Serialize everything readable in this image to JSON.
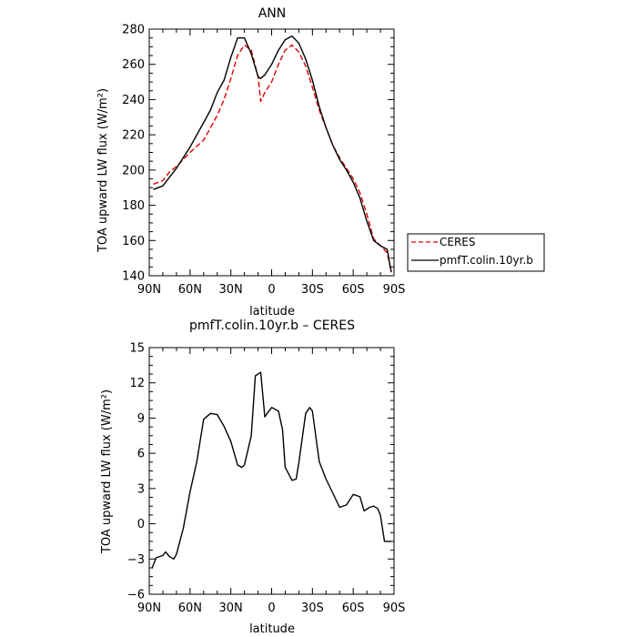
{
  "chart_data": [
    {
      "type": "line",
      "title": "ANN",
      "xlabel": "latitude",
      "ylabel": "TOA upward LW flux (W/m²)",
      "xlim": [
        90,
        -90
      ],
      "ylim": [
        140,
        280
      ],
      "xticks": [
        90,
        60,
        30,
        0,
        -30,
        -60,
        -90
      ],
      "xtick_labels": [
        "90N",
        "60N",
        "30N",
        "0",
        "30S",
        "60S",
        "90S"
      ],
      "yticks": [
        140,
        160,
        180,
        200,
        220,
        240,
        260,
        280
      ],
      "ytick_labels": [
        "140",
        "160",
        "180",
        "200",
        "220",
        "240",
        "260",
        "280"
      ],
      "legend": "outside-right",
      "series": [
        {
          "name": "CERES",
          "color": "#dd0000",
          "dash": "dashed",
          "x": [
            87,
            80,
            75,
            70,
            60,
            50,
            45,
            40,
            35,
            30,
            25,
            20,
            15,
            10,
            8,
            5,
            0,
            -5,
            -10,
            -15,
            -20,
            -25,
            -30,
            -35,
            -40,
            -45,
            -50,
            -55,
            -60,
            -65,
            -70,
            -75,
            -80,
            -85,
            -88
          ],
          "y": [
            192,
            194,
            199,
            202,
            210,
            217,
            224,
            231,
            240,
            252,
            265,
            271,
            268,
            253,
            239,
            244,
            250,
            260,
            268,
            271,
            267,
            259,
            247,
            234,
            224,
            214,
            207,
            201,
            195,
            187,
            175,
            161,
            157,
            153,
            142
          ]
        },
        {
          "name": "pmfT.colin.10yr.b",
          "color": "#000000",
          "dash": "solid",
          "x": [
            87,
            80,
            75,
            70,
            60,
            50,
            45,
            40,
            35,
            30,
            25,
            20,
            15,
            10,
            8,
            5,
            0,
            -5,
            -10,
            -15,
            -20,
            -25,
            -30,
            -35,
            -40,
            -45,
            -50,
            -55,
            -60,
            -65,
            -70,
            -75,
            -80,
            -85,
            -88
          ],
          "y": [
            189,
            191,
            196,
            201,
            213,
            227,
            234,
            244,
            251,
            264,
            275,
            275,
            266,
            253,
            252,
            254,
            260,
            268,
            274,
            276,
            272,
            263,
            251,
            236,
            224,
            214,
            206,
            200,
            193,
            184,
            171,
            160,
            157,
            155,
            142
          ]
        }
      ]
    },
    {
      "type": "line",
      "title": "pmfT.colin.10yr.b – CERES",
      "xlabel": "latitude",
      "ylabel": "TOA upward LW flux (W/m²)",
      "xlim": [
        90,
        -90
      ],
      "ylim": [
        -6,
        15
      ],
      "xticks": [
        90,
        60,
        30,
        0,
        -30,
        -60,
        -90
      ],
      "xtick_labels": [
        "90N",
        "60N",
        "30N",
        "0",
        "30S",
        "60S",
        "90S"
      ],
      "yticks": [
        -6,
        -3,
        0,
        3,
        6,
        9,
        12,
        15
      ],
      "ytick_labels": [
        "−6",
        "−3",
        "0",
        "3",
        "6",
        "9",
        "12",
        "15"
      ],
      "series": [
        {
          "color": "#000000",
          "dash": "solid",
          "x": [
            88,
            85,
            80,
            78,
            75,
            72,
            70,
            65,
            60,
            55,
            50,
            45,
            40,
            35,
            30,
            25,
            22,
            20,
            15,
            12,
            8,
            5,
            2,
            0,
            -5,
            -8,
            -10,
            -15,
            -18,
            -20,
            -25,
            -28,
            -30,
            -35,
            -40,
            -45,
            -50,
            -55,
            -60,
            -65,
            -68,
            -72,
            -75,
            -78,
            -80,
            -83,
            -85,
            -88
          ],
          "y": [
            -3.8,
            -2.9,
            -2.7,
            -2.4,
            -2.8,
            -3.0,
            -2.6,
            -0.4,
            2.7,
            5.3,
            8.9,
            9.4,
            9.3,
            8.3,
            7.0,
            5.0,
            4.8,
            5.0,
            7.5,
            12.6,
            12.9,
            9.1,
            9.6,
            9.9,
            9.6,
            8.0,
            4.8,
            3.7,
            3.8,
            5.2,
            9.4,
            9.9,
            9.6,
            5.3,
            3.8,
            2.6,
            1.4,
            1.6,
            2.5,
            2.3,
            1.1,
            1.4,
            1.5,
            1.3,
            0.7,
            -1.5,
            -1.5,
            -1.5
          ]
        }
      ]
    }
  ]
}
